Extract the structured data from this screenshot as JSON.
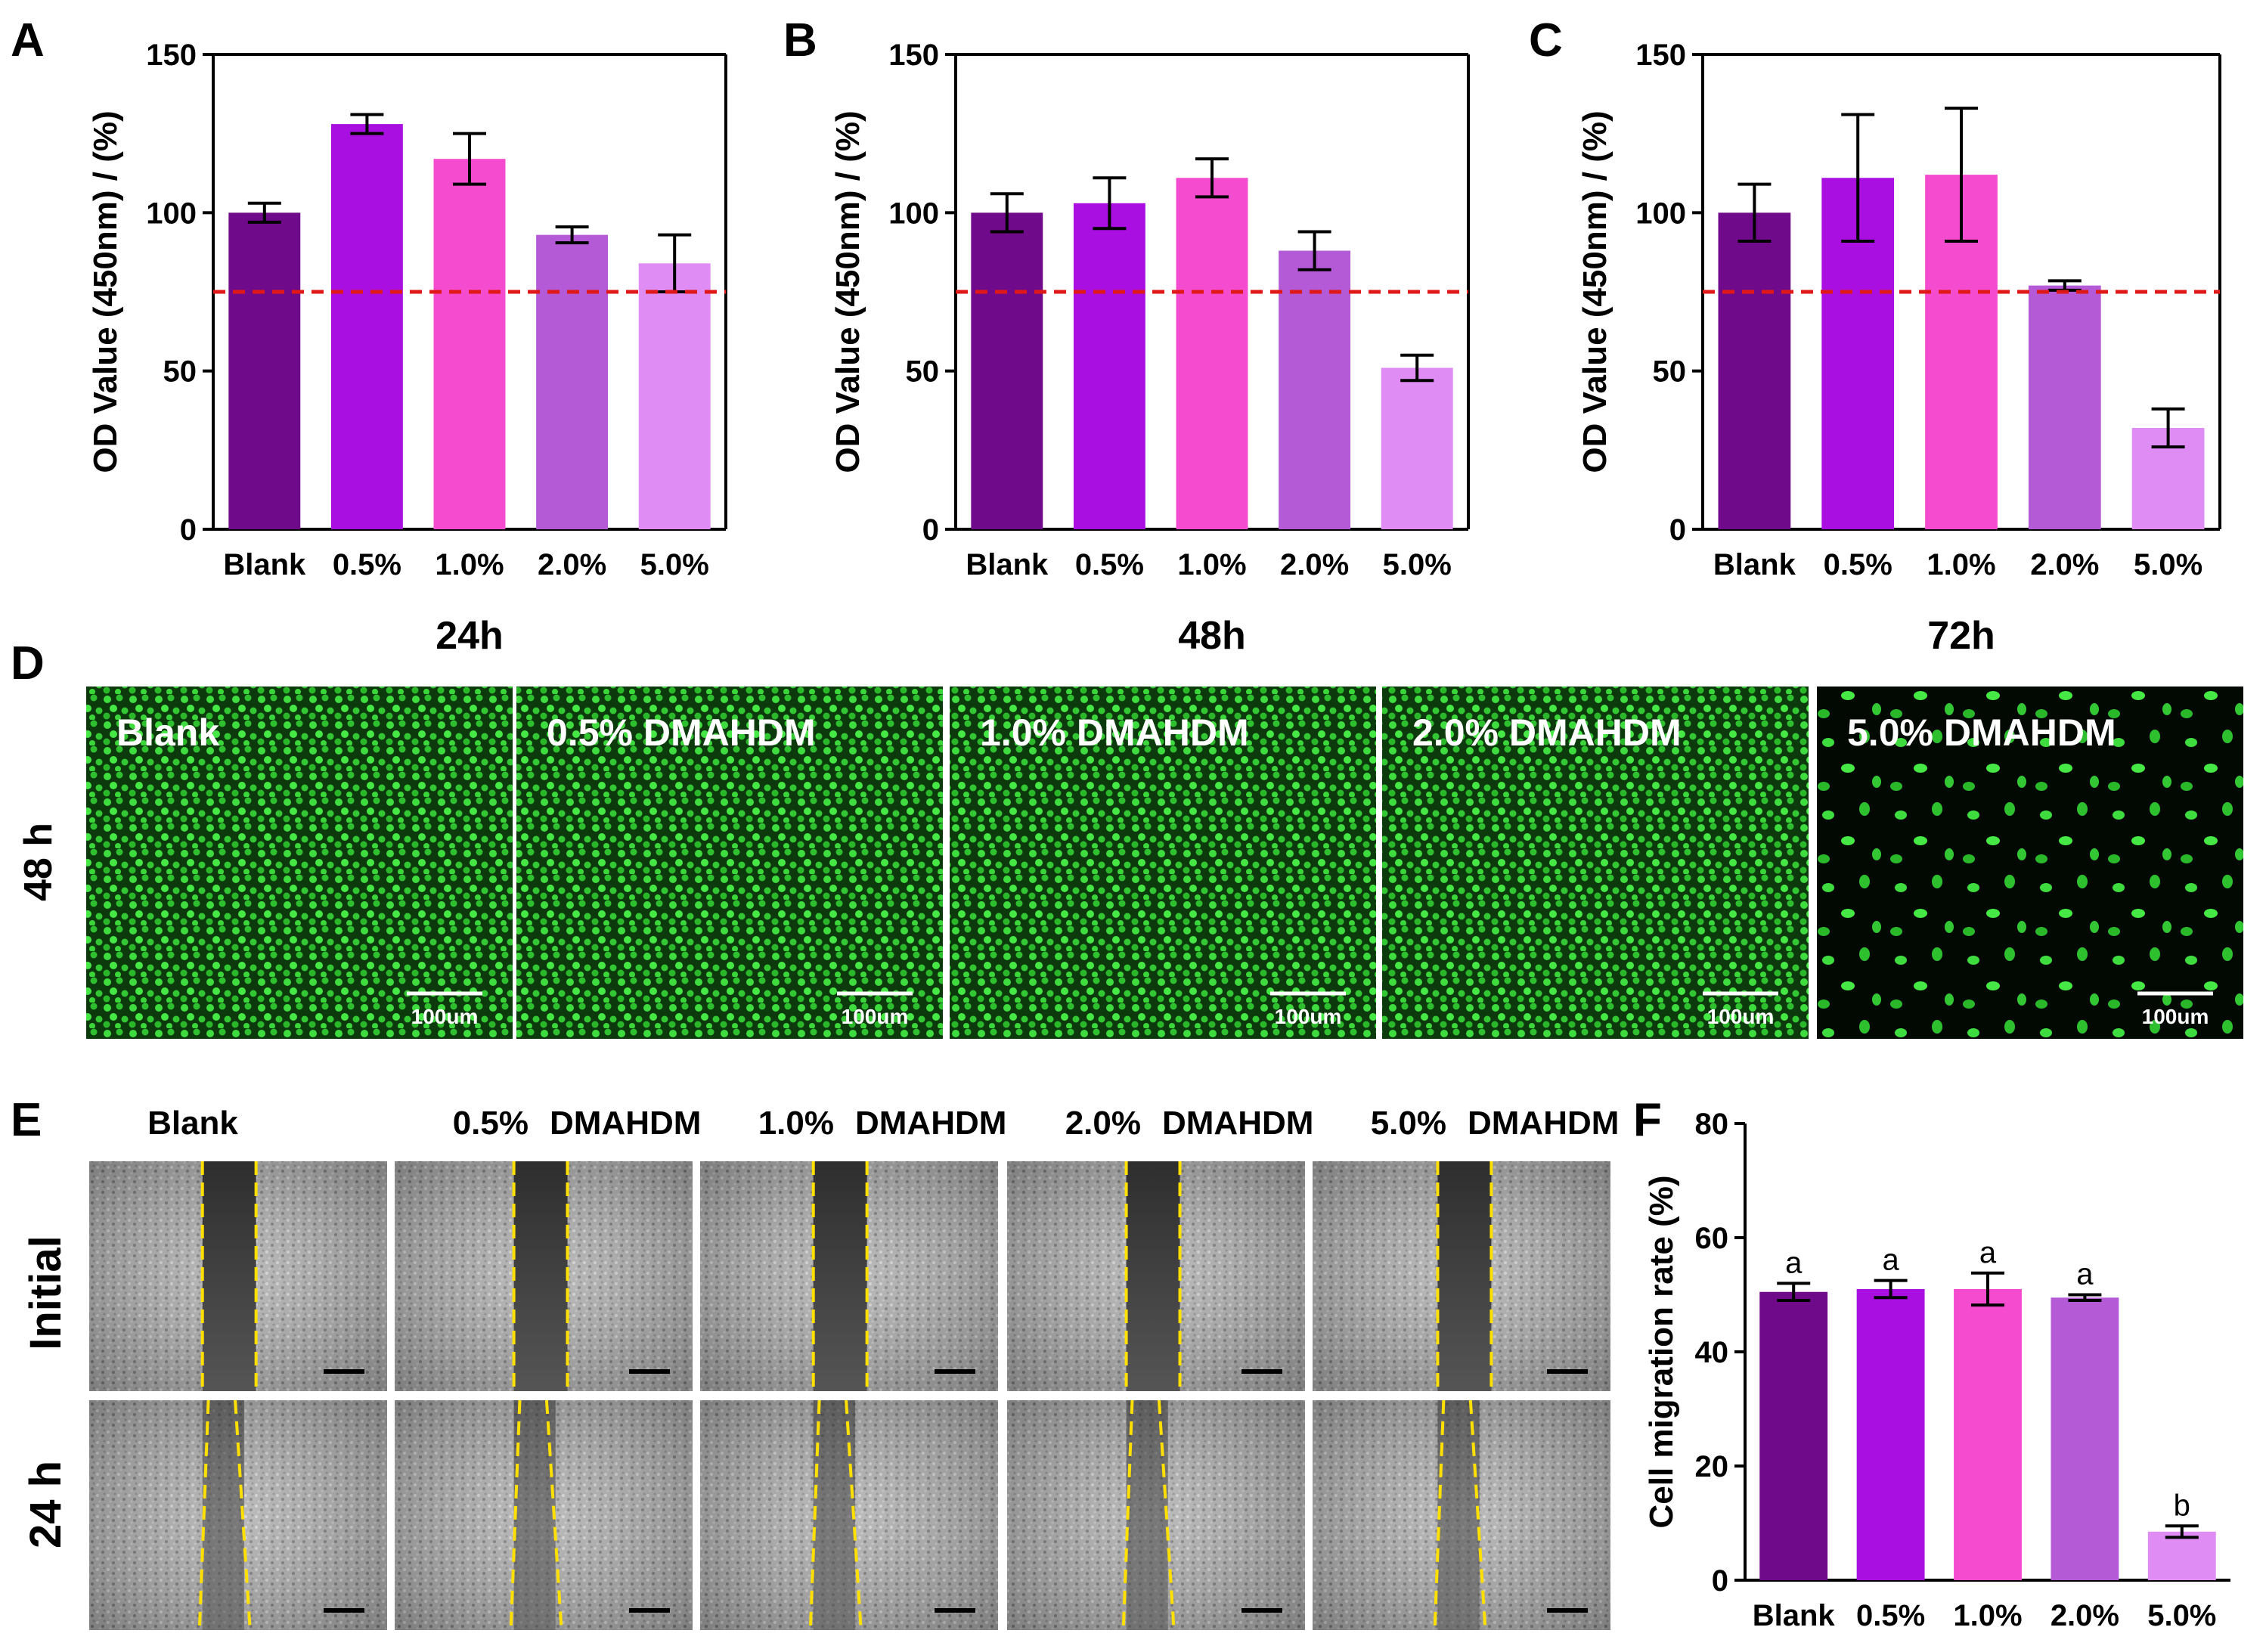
{
  "panel_letters": [
    "A",
    "B",
    "C",
    "D",
    "E",
    "F"
  ],
  "colors": {
    "bars": [
      "#6f0a8a",
      "#a80fe0",
      "#f54ccf",
      "#b45ad6",
      "#df8cf5"
    ],
    "threshold_line": "#e01818",
    "fluorescence_bg": "#0a2a0a",
    "fluorescence_cell": "#34d034",
    "scratch_gap": "#3c3c3c",
    "wound_edge": "#ffe000"
  },
  "chart_data": [
    {
      "id": "A",
      "type": "bar",
      "title": "24h",
      "ylabel": "OD Value (450nm) / (%)",
      "xlabel": "",
      "categories": [
        "Blank",
        "0.5%",
        "1.0%",
        "2.0%",
        "5.0%"
      ],
      "values": [
        100,
        128,
        117,
        93,
        84
      ],
      "errors": [
        3,
        3,
        8,
        2.5,
        9
      ],
      "ylim": [
        0,
        150
      ],
      "yticks": [
        "0",
        "50",
        "100",
        "150"
      ],
      "threshold": 75
    },
    {
      "id": "B",
      "type": "bar",
      "title": "48h",
      "ylabel": "OD Value (450nm) / (%)",
      "xlabel": "",
      "categories": [
        "Blank",
        "0.5%",
        "1.0%",
        "2.0%",
        "5.0%"
      ],
      "values": [
        100,
        103,
        111,
        88,
        51
      ],
      "errors": [
        6,
        8,
        6,
        6,
        4
      ],
      "ylim": [
        0,
        150
      ],
      "yticks": [
        "0",
        "50",
        "100",
        "150"
      ],
      "threshold": 75
    },
    {
      "id": "C",
      "type": "bar",
      "title": "72h",
      "ylabel": "OD Value (450nm) / (%)",
      "xlabel": "",
      "categories": [
        "Blank",
        "0.5%",
        "1.0%",
        "2.0%",
        "5.0%"
      ],
      "values": [
        100,
        111,
        112,
        77,
        32
      ],
      "errors": [
        9,
        20,
        21,
        1.5,
        6
      ],
      "ylim": [
        0,
        150
      ],
      "yticks": [
        "0",
        "50",
        "100",
        "150"
      ],
      "threshold": 75
    },
    {
      "id": "F",
      "type": "bar",
      "title": "",
      "ylabel": "Cell migration rate (%)",
      "xlabel": "",
      "categories": [
        "Blank",
        "0.5%",
        "1.0%",
        "2.0%",
        "5.0%"
      ],
      "values": [
        50.5,
        51,
        51,
        49.5,
        8.5
      ],
      "errors": [
        1.5,
        1.5,
        2.8,
        0.5,
        1
      ],
      "ylim": [
        0,
        80
      ],
      "yticks": [
        "0",
        "20",
        "40",
        "60",
        "80"
      ],
      "significance": [
        "a",
        "a",
        "a",
        "a",
        "b"
      ]
    }
  ],
  "panel_d": {
    "row_label": "48 h",
    "image_labels": [
      "Blank",
      "0.5% DMAHDM",
      "1.0% DMAHDM",
      "2.0% DMAHDM",
      "5.0% DMAHDM"
    ],
    "scale_bar": "100um",
    "cell_density": [
      1.0,
      1.0,
      1.0,
      1.0,
      0.22
    ]
  },
  "panel_e": {
    "column_labels": [
      [
        "Blank",
        ""
      ],
      [
        "0.5%",
        "DMAHDM"
      ],
      [
        "1.0%",
        "DMAHDM"
      ],
      [
        "2.0%",
        "DMAHDM"
      ],
      [
        "5.0%",
        "DMAHDM"
      ]
    ],
    "row_labels": [
      "Initial",
      "24 h"
    ]
  }
}
